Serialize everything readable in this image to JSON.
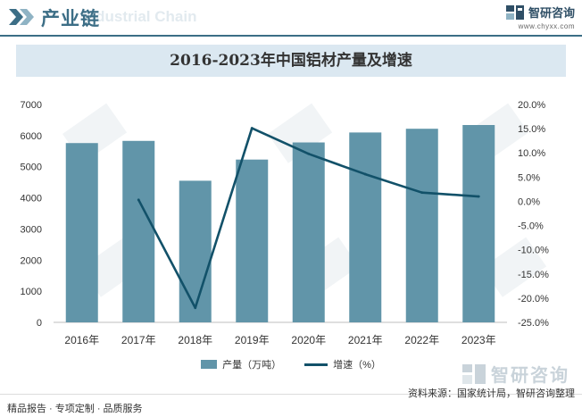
{
  "header": {
    "title": "产业链",
    "watermark": "Industrial Chain",
    "brand_name": "智研咨询",
    "brand_url": "www.chyxx.com"
  },
  "chart_data": {
    "type": "bar",
    "title": "2016-2023年中国铝材产量及增速",
    "categories": [
      "2016年",
      "2017年",
      "2018年",
      "2019年",
      "2020年",
      "2021年",
      "2022年",
      "2023年"
    ],
    "series": [
      {
        "name": "产量（万吨）",
        "type": "bar",
        "axis": "left",
        "values": [
          5760,
          5830,
          4550,
          5230,
          5780,
          6100,
          6220,
          6340
        ]
      },
      {
        "name": "增速（%）",
        "type": "line",
        "axis": "right",
        "values": [
          null,
          0.3,
          -22.0,
          15.1,
          9.8,
          5.6,
          1.8,
          1.0
        ]
      }
    ],
    "left_axis": {
      "min": 0,
      "max": 7000,
      "step": 1000,
      "ticks": [
        "0",
        "1000",
        "2000",
        "3000",
        "4000",
        "5000",
        "6000",
        "7000"
      ]
    },
    "right_axis": {
      "min": -25,
      "max": 20,
      "step": 5,
      "ticks": [
        "-25.0%",
        "-20.0%",
        "-15.0%",
        "-10.0%",
        "-5.0%",
        "0.0%",
        "5.0%",
        "10.0%",
        "15.0%",
        "20.0%"
      ]
    },
    "legend_position": "bottom",
    "bar_color": "#6195a9",
    "line_color": "#125169"
  },
  "footer": {
    "left": "精品报告 · 专项定制 · 品质服务",
    "source": "资料来源：国家统计局，智研咨询整理",
    "logo_text": "智研咨询"
  }
}
